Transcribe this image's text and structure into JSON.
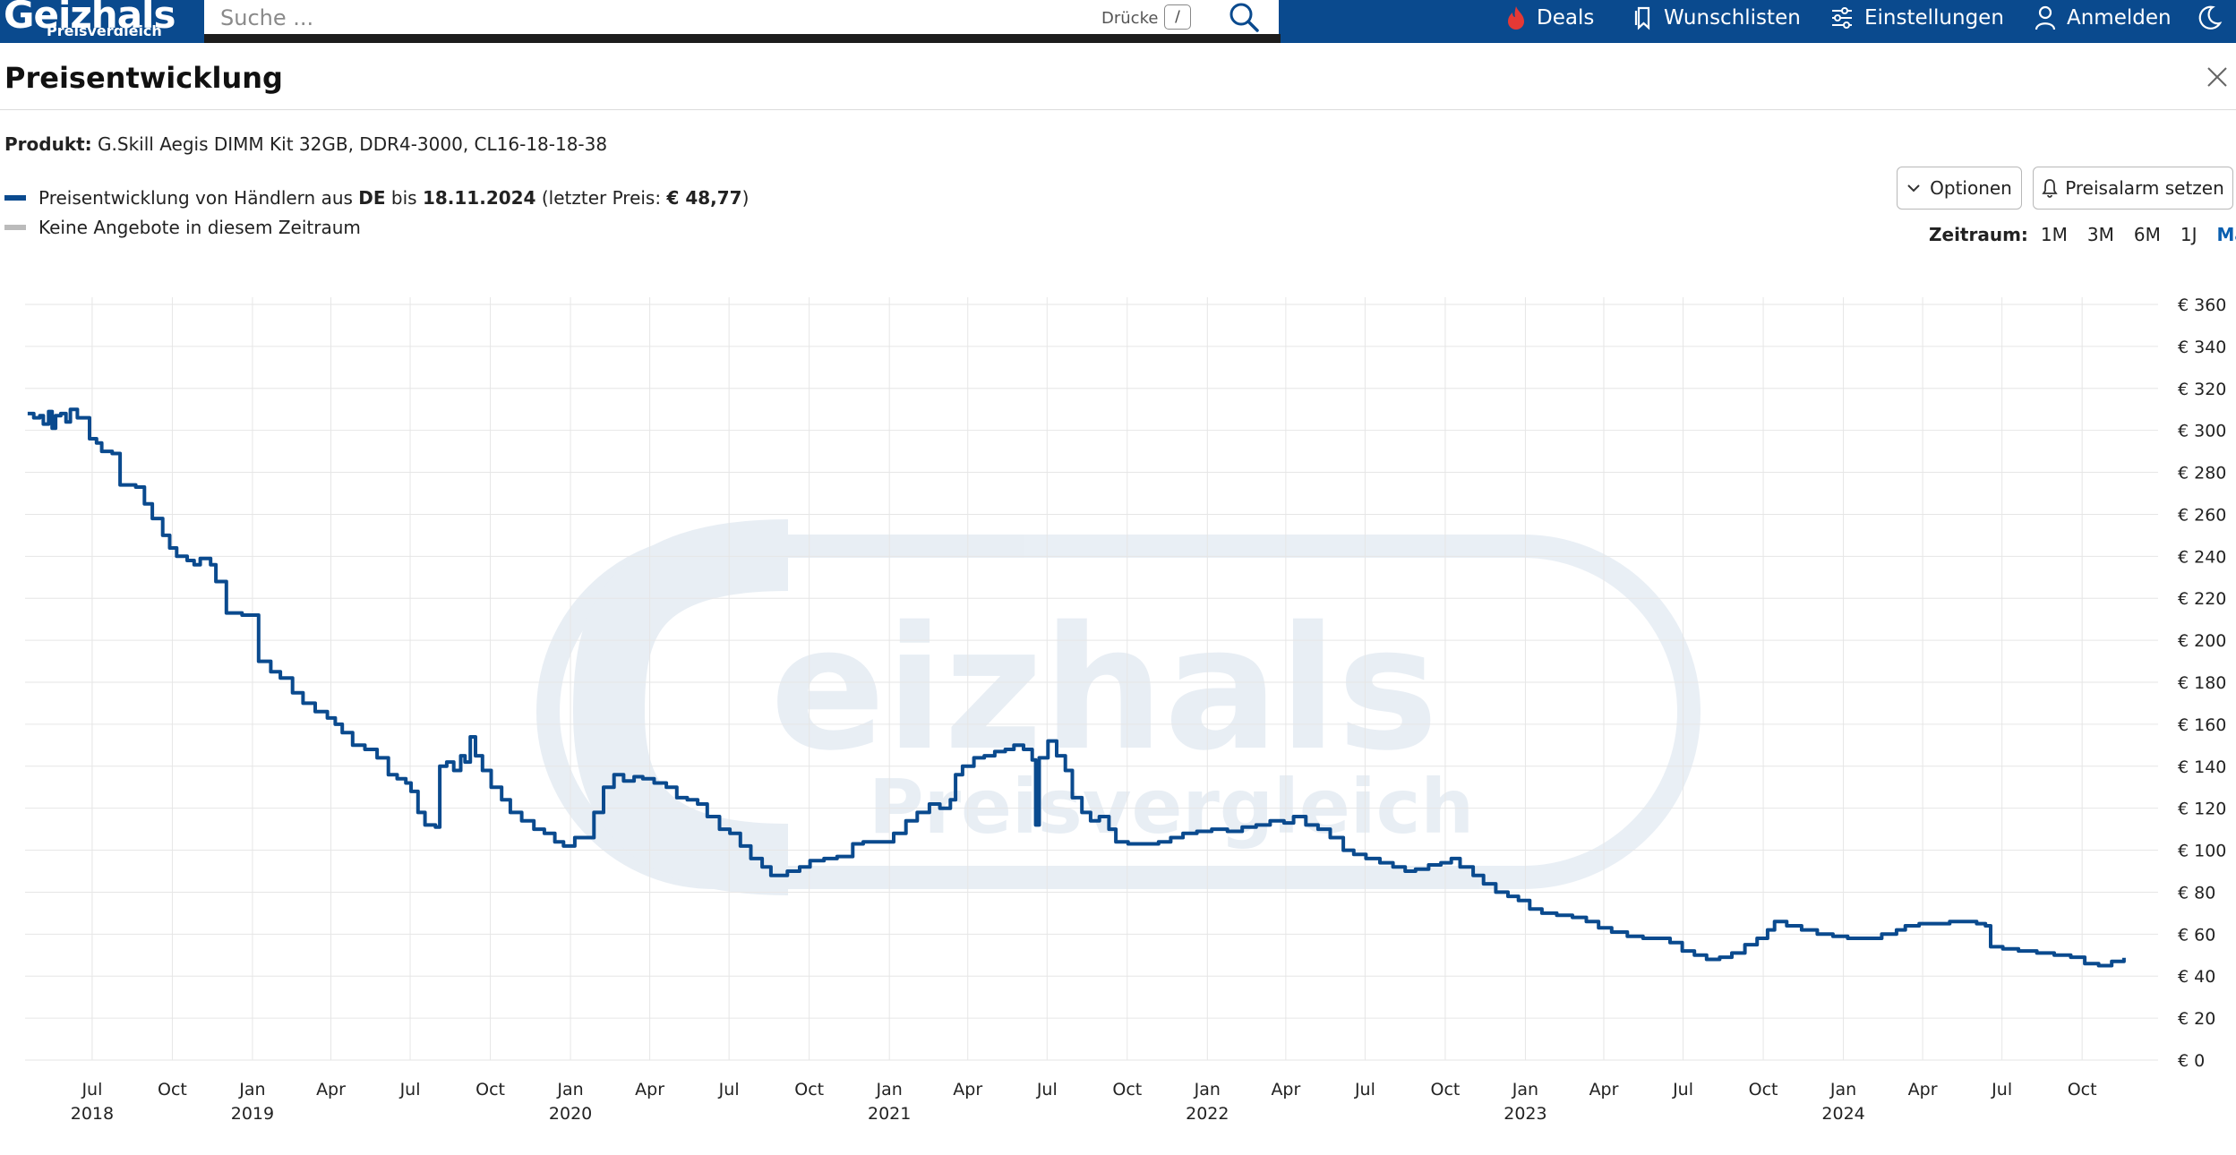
{
  "header": {
    "logo_text": "Geizhals",
    "logo_subtext": "Preisvergleich",
    "search_placeholder": "Suche ...",
    "search_hint": "Drücke",
    "search_key": "/",
    "nav": {
      "deals": "Deals",
      "wishlists": "Wunschlisten",
      "settings": "Einstellungen",
      "login": "Anmelden"
    },
    "colors": {
      "bar": "#0a4a8e",
      "deals_icon": "#e53935"
    }
  },
  "dialog": {
    "title": "Preisentwicklung",
    "product_label": "Produkt:",
    "product_name": "G.Skill Aegis DIMM Kit 32GB, DDR4-3000, CL16-18-18-38",
    "legend_line": {
      "prefix": "Preisentwicklung von Händlern aus",
      "country": "DE",
      "until": "bis",
      "date": "18.11.2024",
      "last_price_open": "(letzter Preis:",
      "last_price": "€ 48,77",
      "last_price_close": ")"
    },
    "legend_no_offers": "Keine Angebote in diesem Zeitraum",
    "options_button": "Optionen",
    "alarm_button": "Preisalarm setzen",
    "zeitraum_label": "Zeitraum:",
    "ranges": [
      "1M",
      "3M",
      "6M",
      "1J",
      "Max"
    ],
    "active_range": "Max"
  },
  "chart_data": {
    "type": "line",
    "series": [
      {
        "name": "Preisentwicklung von Händlern aus DE",
        "color": "#0a4a8e",
        "points": [
          [
            "2018-04-18",
            308
          ],
          [
            "2018-04-25",
            306
          ],
          [
            "2018-05-02",
            307
          ],
          [
            "2018-05-06",
            303
          ],
          [
            "2018-05-12",
            309
          ],
          [
            "2018-05-16",
            301
          ],
          [
            "2018-05-20",
            307
          ],
          [
            "2018-05-26",
            308
          ],
          [
            "2018-06-01",
            304
          ],
          [
            "2018-06-06",
            310
          ],
          [
            "2018-06-14",
            306
          ],
          [
            "2018-06-22",
            306
          ],
          [
            "2018-06-28",
            296
          ],
          [
            "2018-07-06",
            294
          ],
          [
            "2018-07-12",
            290
          ],
          [
            "2018-07-24",
            289
          ],
          [
            "2018-08-02",
            274
          ],
          [
            "2018-08-20",
            273
          ],
          [
            "2018-08-30",
            265
          ],
          [
            "2018-09-08",
            258
          ],
          [
            "2018-09-20",
            250
          ],
          [
            "2018-09-28",
            244
          ],
          [
            "2018-10-06",
            240
          ],
          [
            "2018-10-18",
            238
          ],
          [
            "2018-10-26",
            236
          ],
          [
            "2018-11-02",
            239
          ],
          [
            "2018-11-14",
            236
          ],
          [
            "2018-11-20",
            228
          ],
          [
            "2018-12-02",
            213
          ],
          [
            "2018-12-20",
            212
          ],
          [
            "2019-01-08",
            190
          ],
          [
            "2019-01-22",
            185
          ],
          [
            "2019-02-02",
            182
          ],
          [
            "2019-02-16",
            175
          ],
          [
            "2019-02-28",
            170
          ],
          [
            "2019-03-14",
            166
          ],
          [
            "2019-03-28",
            163
          ],
          [
            "2019-04-06",
            160
          ],
          [
            "2019-04-14",
            156
          ],
          [
            "2019-04-26",
            150
          ],
          [
            "2019-05-10",
            148
          ],
          [
            "2019-05-24",
            144
          ],
          [
            "2019-06-06",
            136
          ],
          [
            "2019-06-16",
            134
          ],
          [
            "2019-06-26",
            132
          ],
          [
            "2019-07-02",
            128
          ],
          [
            "2019-07-10",
            118
          ],
          [
            "2019-07-18",
            112
          ],
          [
            "2019-07-30",
            111
          ],
          [
            "2019-08-04",
            140
          ],
          [
            "2019-08-12",
            142
          ],
          [
            "2019-08-20",
            138
          ],
          [
            "2019-08-28",
            145
          ],
          [
            "2019-09-02",
            142
          ],
          [
            "2019-09-08",
            154
          ],
          [
            "2019-09-14",
            145
          ],
          [
            "2019-09-22",
            138
          ],
          [
            "2019-10-02",
            130
          ],
          [
            "2019-10-14",
            124
          ],
          [
            "2019-10-24",
            118
          ],
          [
            "2019-11-06",
            114
          ],
          [
            "2019-11-20",
            110
          ],
          [
            "2019-12-02",
            108
          ],
          [
            "2019-12-14",
            104
          ],
          [
            "2019-12-24",
            102
          ],
          [
            "2020-01-06",
            106
          ],
          [
            "2020-01-18",
            106
          ],
          [
            "2020-01-28",
            118
          ],
          [
            "2020-02-08",
            130
          ],
          [
            "2020-02-20",
            136
          ],
          [
            "2020-03-02",
            133
          ],
          [
            "2020-03-14",
            135
          ],
          [
            "2020-03-24",
            134
          ],
          [
            "2020-04-06",
            132
          ],
          [
            "2020-04-20",
            130
          ],
          [
            "2020-05-02",
            125
          ],
          [
            "2020-05-14",
            124
          ],
          [
            "2020-05-26",
            122
          ],
          [
            "2020-06-06",
            116
          ],
          [
            "2020-06-20",
            110
          ],
          [
            "2020-07-02",
            108
          ],
          [
            "2020-07-14",
            102
          ],
          [
            "2020-07-26",
            96
          ],
          [
            "2020-08-08",
            92
          ],
          [
            "2020-08-18",
            88
          ],
          [
            "2020-08-26",
            88
          ],
          [
            "2020-09-06",
            90
          ],
          [
            "2020-09-20",
            92
          ],
          [
            "2020-10-02",
            95
          ],
          [
            "2020-10-18",
            96
          ],
          [
            "2020-11-02",
            97
          ],
          [
            "2020-11-20",
            103
          ],
          [
            "2020-12-02",
            104
          ],
          [
            "2020-12-20",
            104
          ],
          [
            "2021-01-06",
            108
          ],
          [
            "2021-01-20",
            114
          ],
          [
            "2021-02-02",
            118
          ],
          [
            "2021-02-16",
            122
          ],
          [
            "2021-02-28",
            120
          ],
          [
            "2021-03-12",
            124
          ],
          [
            "2021-03-18",
            136
          ],
          [
            "2021-03-26",
            140
          ],
          [
            "2021-04-08",
            144
          ],
          [
            "2021-04-20",
            145
          ],
          [
            "2021-05-02",
            147
          ],
          [
            "2021-05-14",
            148
          ],
          [
            "2021-05-24",
            150
          ],
          [
            "2021-06-04",
            148
          ],
          [
            "2021-06-14",
            143
          ],
          [
            "2021-06-18",
            112
          ],
          [
            "2021-06-22",
            144
          ],
          [
            "2021-07-02",
            152
          ],
          [
            "2021-07-12",
            145
          ],
          [
            "2021-07-22",
            138
          ],
          [
            "2021-07-30",
            125
          ],
          [
            "2021-08-10",
            118
          ],
          [
            "2021-08-20",
            114
          ],
          [
            "2021-08-30",
            116
          ],
          [
            "2021-09-10",
            110
          ],
          [
            "2021-09-18",
            104
          ],
          [
            "2021-10-02",
            103
          ],
          [
            "2021-10-20",
            103
          ],
          [
            "2021-11-06",
            104
          ],
          [
            "2021-11-20",
            106
          ],
          [
            "2021-12-04",
            108
          ],
          [
            "2021-12-20",
            109
          ],
          [
            "2022-01-06",
            110
          ],
          [
            "2022-01-24",
            109
          ],
          [
            "2022-02-10",
            111
          ],
          [
            "2022-02-26",
            112
          ],
          [
            "2022-03-14",
            114
          ],
          [
            "2022-03-30",
            113
          ],
          [
            "2022-04-10",
            116
          ],
          [
            "2022-04-24",
            112
          ],
          [
            "2022-05-08",
            110
          ],
          [
            "2022-05-22",
            106
          ],
          [
            "2022-06-06",
            100
          ],
          [
            "2022-06-18",
            98
          ],
          [
            "2022-07-02",
            96
          ],
          [
            "2022-07-18",
            94
          ],
          [
            "2022-08-02",
            92
          ],
          [
            "2022-08-16",
            90
          ],
          [
            "2022-08-28",
            91
          ],
          [
            "2022-09-12",
            93
          ],
          [
            "2022-09-26",
            94
          ],
          [
            "2022-10-08",
            96
          ],
          [
            "2022-10-18",
            92
          ],
          [
            "2022-11-02",
            88
          ],
          [
            "2022-11-14",
            84
          ],
          [
            "2022-11-28",
            80
          ],
          [
            "2022-12-12",
            78
          ],
          [
            "2022-12-24",
            76
          ],
          [
            "2023-01-06",
            72
          ],
          [
            "2023-01-20",
            70
          ],
          [
            "2023-02-06",
            69
          ],
          [
            "2023-02-24",
            68
          ],
          [
            "2023-03-12",
            66
          ],
          [
            "2023-03-26",
            63
          ],
          [
            "2023-04-10",
            61
          ],
          [
            "2023-04-28",
            59
          ],
          [
            "2023-05-16",
            58
          ],
          [
            "2023-06-02",
            58
          ],
          [
            "2023-06-16",
            56
          ],
          [
            "2023-06-30",
            52
          ],
          [
            "2023-07-14",
            50
          ],
          [
            "2023-07-28",
            48
          ],
          [
            "2023-08-12",
            49
          ],
          [
            "2023-08-26",
            51
          ],
          [
            "2023-09-10",
            55
          ],
          [
            "2023-09-24",
            58
          ],
          [
            "2023-10-06",
            62
          ],
          [
            "2023-10-14",
            66
          ],
          [
            "2023-10-28",
            64
          ],
          [
            "2023-11-14",
            62
          ],
          [
            "2023-12-02",
            60
          ],
          [
            "2023-12-20",
            59
          ],
          [
            "2024-01-06",
            58
          ],
          [
            "2024-01-26",
            58
          ],
          [
            "2024-02-14",
            60
          ],
          [
            "2024-03-02",
            62
          ],
          [
            "2024-03-12",
            64
          ],
          [
            "2024-03-28",
            65
          ],
          [
            "2024-04-14",
            65
          ],
          [
            "2024-05-02",
            66
          ],
          [
            "2024-05-18",
            66
          ],
          [
            "2024-06-02",
            65
          ],
          [
            "2024-06-12",
            64
          ],
          [
            "2024-06-18",
            54
          ],
          [
            "2024-07-02",
            53
          ],
          [
            "2024-07-20",
            52
          ],
          [
            "2024-08-10",
            51
          ],
          [
            "2024-08-30",
            50
          ],
          [
            "2024-09-18",
            49
          ],
          [
            "2024-10-04",
            46
          ],
          [
            "2024-10-20",
            45
          ],
          [
            "2024-11-04",
            47
          ],
          [
            "2024-11-18",
            48.77
          ]
        ]
      }
    ],
    "x_ticks": [
      "Jul",
      "Oct",
      "Jan",
      "Apr",
      "Jul",
      "Oct",
      "Jan",
      "Apr",
      "Jul",
      "Oct",
      "Jan",
      "Apr",
      "Jul",
      "Oct",
      "Jan",
      "Apr",
      "Jul",
      "Oct",
      "Jan",
      "Apr",
      "Jul",
      "Oct",
      "Jan",
      "Apr",
      "Jul",
      "Oct"
    ],
    "x_tick_dates": [
      "2018-07-01",
      "2018-10-01",
      "2019-01-01",
      "2019-04-01",
      "2019-07-01",
      "2019-10-01",
      "2020-01-01",
      "2020-04-01",
      "2020-07-01",
      "2020-10-01",
      "2021-01-01",
      "2021-04-01",
      "2021-07-01",
      "2021-10-01",
      "2022-01-01",
      "2022-04-01",
      "2022-07-01",
      "2022-10-01",
      "2023-01-01",
      "2023-04-01",
      "2023-07-01",
      "2023-10-01",
      "2024-01-01",
      "2024-04-01",
      "2024-07-01",
      "2024-10-01"
    ],
    "x_years": [
      "2018",
      "2019",
      "2020",
      "2021",
      "2022",
      "2023",
      "2024"
    ],
    "x_year_dates": [
      "2018-07-01",
      "2019-01-01",
      "2020-01-01",
      "2021-01-01",
      "2022-01-01",
      "2023-01-01",
      "2024-01-01"
    ],
    "xlim": [
      "2018-04-15",
      "2024-12-20"
    ],
    "y_ticks": [
      "€ 0",
      "€ 20",
      "€ 40",
      "€ 60",
      "€ 80",
      "€ 100",
      "€ 120",
      "€ 140",
      "€ 160",
      "€ 180",
      "€ 200",
      "€ 220",
      "€ 240",
      "€ 260",
      "€ 280",
      "€ 300",
      "€ 320",
      "€ 340",
      "€ 360"
    ],
    "ylim": [
      0,
      360
    ],
    "grid": true,
    "watermark_text": [
      "eizhals",
      "Preisvergleich"
    ]
  }
}
